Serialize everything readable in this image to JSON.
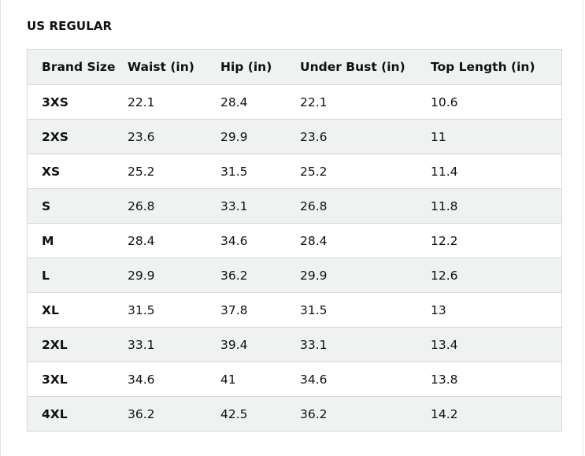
{
  "section": {
    "title": "US REGULAR"
  },
  "table": {
    "headers": [
      "Brand Size",
      "Waist (in)",
      "Hip (in)",
      "Under Bust (in)",
      "Top Length (in)"
    ],
    "rows": [
      [
        "3XS",
        "22.1",
        "28.4",
        "22.1",
        "10.6"
      ],
      [
        "2XS",
        "23.6",
        "29.9",
        "23.6",
        "11"
      ],
      [
        "XS",
        "25.2",
        "31.5",
        "25.2",
        "11.4"
      ],
      [
        "S",
        "26.8",
        "33.1",
        "26.8",
        "11.8"
      ],
      [
        "M",
        "28.4",
        "34.6",
        "28.4",
        "12.2"
      ],
      [
        "L",
        "29.9",
        "36.2",
        "29.9",
        "12.6"
      ],
      [
        "XL",
        "31.5",
        "37.8",
        "31.5",
        "13"
      ],
      [
        "2XL",
        "33.1",
        "39.4",
        "33.1",
        "13.4"
      ],
      [
        "3XL",
        "34.6",
        "41",
        "34.6",
        "13.8"
      ],
      [
        "4XL",
        "36.2",
        "42.5",
        "36.2",
        "14.2"
      ]
    ]
  },
  "colors": {
    "text": "#0f1111",
    "header_bg": "#f0f2f2",
    "stripe_bg": "#f0f2f2",
    "border": "#d5d9d9"
  }
}
